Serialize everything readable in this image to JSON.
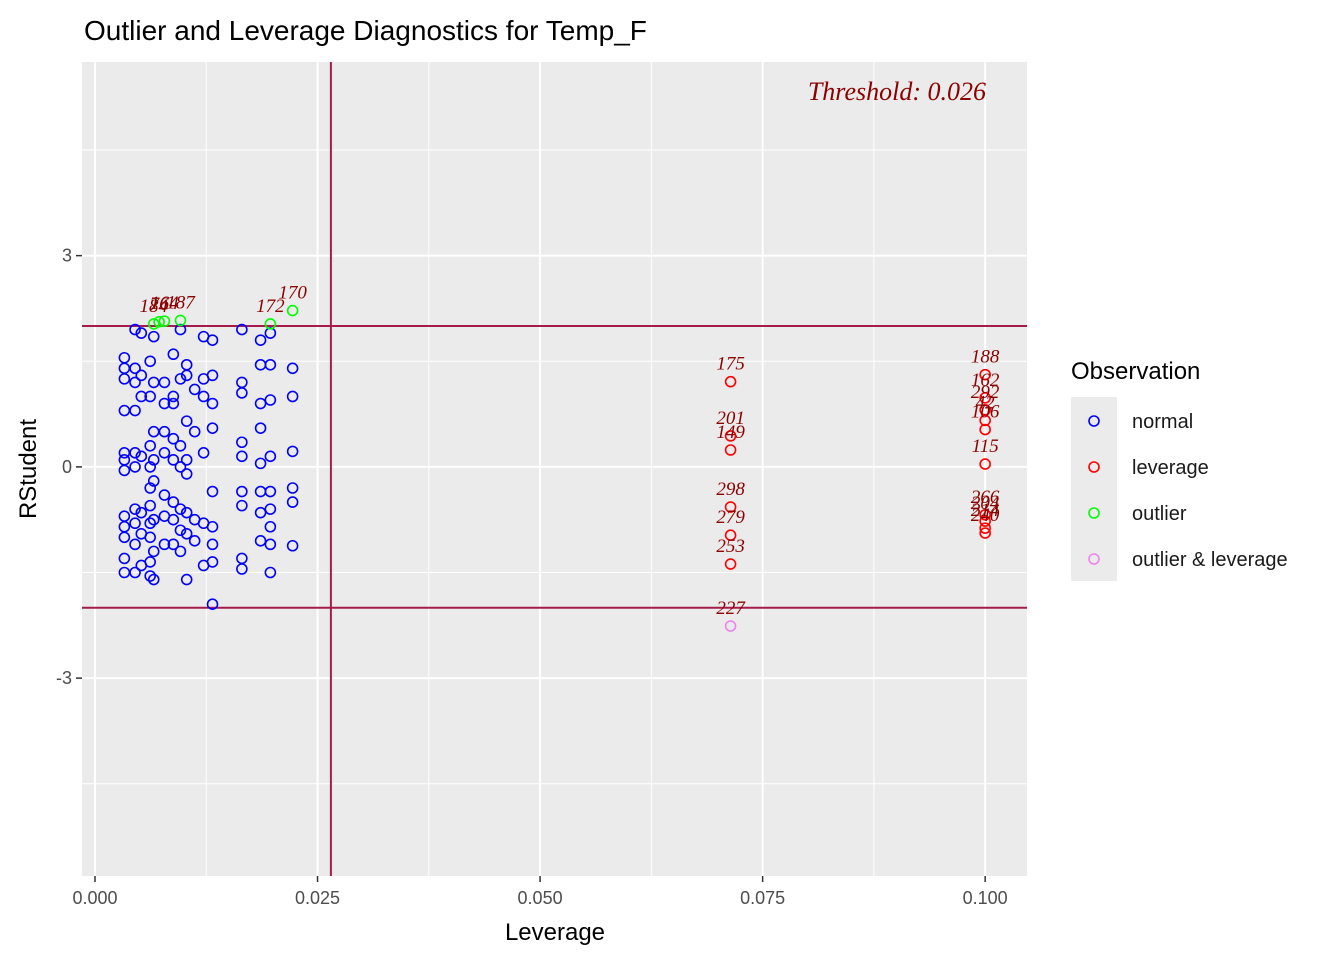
{
  "chart_data": {
    "type": "scatter",
    "title": "Outlier and Leverage Diagnostics for Temp_F",
    "x_label": "Leverage",
    "y_label": "RStudent",
    "legend_title": "Observation",
    "annotation": "Threshold: 0.026",
    "xlim": [
      -0.00146,
      0.1047
    ],
    "ylim": [
      -5.81,
      5.75
    ],
    "xticks": [
      {
        "value": 0,
        "label": "0.000"
      },
      {
        "value": 0.025,
        "label": "0.025"
      },
      {
        "value": 0.05,
        "label": "0.050"
      },
      {
        "value": 0.075,
        "label": "0.075"
      },
      {
        "value": 0.1,
        "label": "0.100"
      }
    ],
    "yticks": [
      -3,
      0,
      3
    ],
    "x_minor_ticks": [
      0.0125,
      0.0375,
      0.0625,
      0.0875
    ],
    "y_minor_ticks": [
      -4.5,
      -1.5,
      1.5,
      4.5
    ],
    "hlines": [
      -2,
      2
    ],
    "vline": 0.0265,
    "threshold_color": "#a51c4a",
    "series": [
      {
        "name": "normal",
        "color": "blue",
        "x": [
          0.0033,
          0.0033,
          0.0033,
          0.0033,
          0.0033,
          0.0033,
          0.0033,
          0.0033,
          0.0033,
          0.0033,
          0.0033,
          0.0033,
          0.0045,
          0.0045,
          0.0045,
          0.0045,
          0.0045,
          0.0045,
          0.0045,
          0.0045,
          0.0045,
          0.0045,
          0.0052,
          0.0052,
          0.0052,
          0.0052,
          0.0052,
          0.0052,
          0.0052,
          0.0062,
          0.0062,
          0.0062,
          0.0062,
          0.0062,
          0.0062,
          0.0062,
          0.0062,
          0.0062,
          0.0062,
          0.0066,
          0.0066,
          0.0066,
          0.0066,
          0.0066,
          0.0066,
          0.0066,
          0.0066,
          0.0078,
          0.0078,
          0.0078,
          0.0078,
          0.0078,
          0.0078,
          0.0078,
          0.0088,
          0.0088,
          0.0088,
          0.0088,
          0.0088,
          0.0088,
          0.0088,
          0.0088,
          0.0096,
          0.0096,
          0.0096,
          0.0096,
          0.0096,
          0.0096,
          0.0096,
          0.0103,
          0.0103,
          0.0103,
          0.0103,
          0.0103,
          0.0103,
          0.0103,
          0.0103,
          0.0112,
          0.0112,
          0.0112,
          0.0112,
          0.0122,
          0.0122,
          0.0122,
          0.0122,
          0.0122,
          0.0122,
          0.0132,
          0.0132,
          0.0132,
          0.0132,
          0.0132,
          0.0132,
          0.0132,
          0.0132,
          0.0132,
          0.0165,
          0.0165,
          0.0165,
          0.0165,
          0.0165,
          0.0165,
          0.0165,
          0.0165,
          0.0165,
          0.0186,
          0.0186,
          0.0186,
          0.0186,
          0.0186,
          0.0186,
          0.0186,
          0.0186,
          0.0197,
          0.0197,
          0.0197,
          0.0197,
          0.0197,
          0.0197,
          0.0197,
          0.0197,
          0.0197,
          0.0222,
          0.0222,
          0.0222,
          0.0222,
          0.0222,
          0.0222
        ],
        "y": [
          1.55,
          1.4,
          1.25,
          0.8,
          0.2,
          0.1,
          -0.05,
          -0.7,
          -0.85,
          -1.0,
          -1.3,
          -1.5,
          1.95,
          1.4,
          1.2,
          0.8,
          0.2,
          0,
          -0.6,
          -0.8,
          -1.1,
          -1.5,
          1.9,
          1.3,
          1.0,
          0.15,
          -0.65,
          -0.95,
          -1.4,
          1.5,
          1.0,
          0.3,
          0.0,
          -0.3,
          -0.55,
          -0.8,
          -1.0,
          -1.35,
          -1.55,
          1.85,
          1.2,
          0.5,
          0.1,
          -0.2,
          -0.75,
          -1.2,
          -1.6,
          1.2,
          0.9,
          0.5,
          0.2,
          -0.4,
          -0.7,
          -1.1,
          1.6,
          1.0,
          0.9,
          0.4,
          0.1,
          -0.5,
          -0.75,
          -1.1,
          1.95,
          1.25,
          0.3,
          0.0,
          -0.6,
          -0.9,
          -1.2,
          1.45,
          1.3,
          0.65,
          0.1,
          -0.1,
          -0.65,
          -0.95,
          -1.6,
          1.1,
          0.5,
          -0.75,
          -1.05,
          1.85,
          1.25,
          1.0,
          0.2,
          -0.8,
          -1.4,
          1.8,
          1.3,
          0.9,
          0.55,
          -0.35,
          -0.85,
          -1.1,
          -1.35,
          -1.95,
          1.95,
          1.2,
          1.05,
          0.35,
          0.15,
          -0.35,
          -0.55,
          -1.3,
          -1.45,
          1.8,
          1.45,
          0.9,
          0.55,
          0.05,
          -0.35,
          -0.65,
          -1.05,
          1.9,
          1.45,
          0.95,
          0.15,
          -0.35,
          -0.6,
          -0.85,
          -1.1,
          -1.5,
          1.4,
          1.0,
          0.22,
          -0.3,
          -0.5,
          -1.12
        ]
      },
      {
        "name": "leverage",
        "color": "red",
        "x": [
          0.0714,
          0.0714,
          0.0714,
          0.0714,
          0.0714,
          0.0714,
          0.1,
          0.1,
          0.1,
          0.1,
          0.1,
          0.1,
          0.1,
          0.1,
          0.1,
          0.1
        ],
        "y": [
          1.21,
          0.44,
          0.24,
          -0.57,
          -0.97,
          -1.38,
          1.31,
          0.98,
          0.81,
          0.66,
          0.53,
          0.04,
          -0.68,
          -0.77,
          -0.87,
          -0.94
        ],
        "labels": [
          "175",
          "201",
          "149",
          "298",
          "279",
          "253",
          "188",
          "162",
          "292",
          "42",
          "106",
          "115",
          "266",
          "204",
          "214",
          "240"
        ]
      },
      {
        "name": "outlier",
        "color": "#00ff00",
        "x": [
          0.0066,
          0.0072,
          0.0078,
          0.0096,
          0.0197,
          0.0222
        ],
        "y": [
          2.03,
          2.06,
          2.07,
          2.08,
          2.03,
          2.22
        ],
        "labels": [
          "184",
          "76",
          "164",
          "187",
          "172",
          "170"
        ]
      },
      {
        "name": "outlier & leverage",
        "color": "violet",
        "x": [
          0.0714
        ],
        "y": [
          -2.26
        ],
        "labels": [
          "227"
        ]
      }
    ]
  }
}
